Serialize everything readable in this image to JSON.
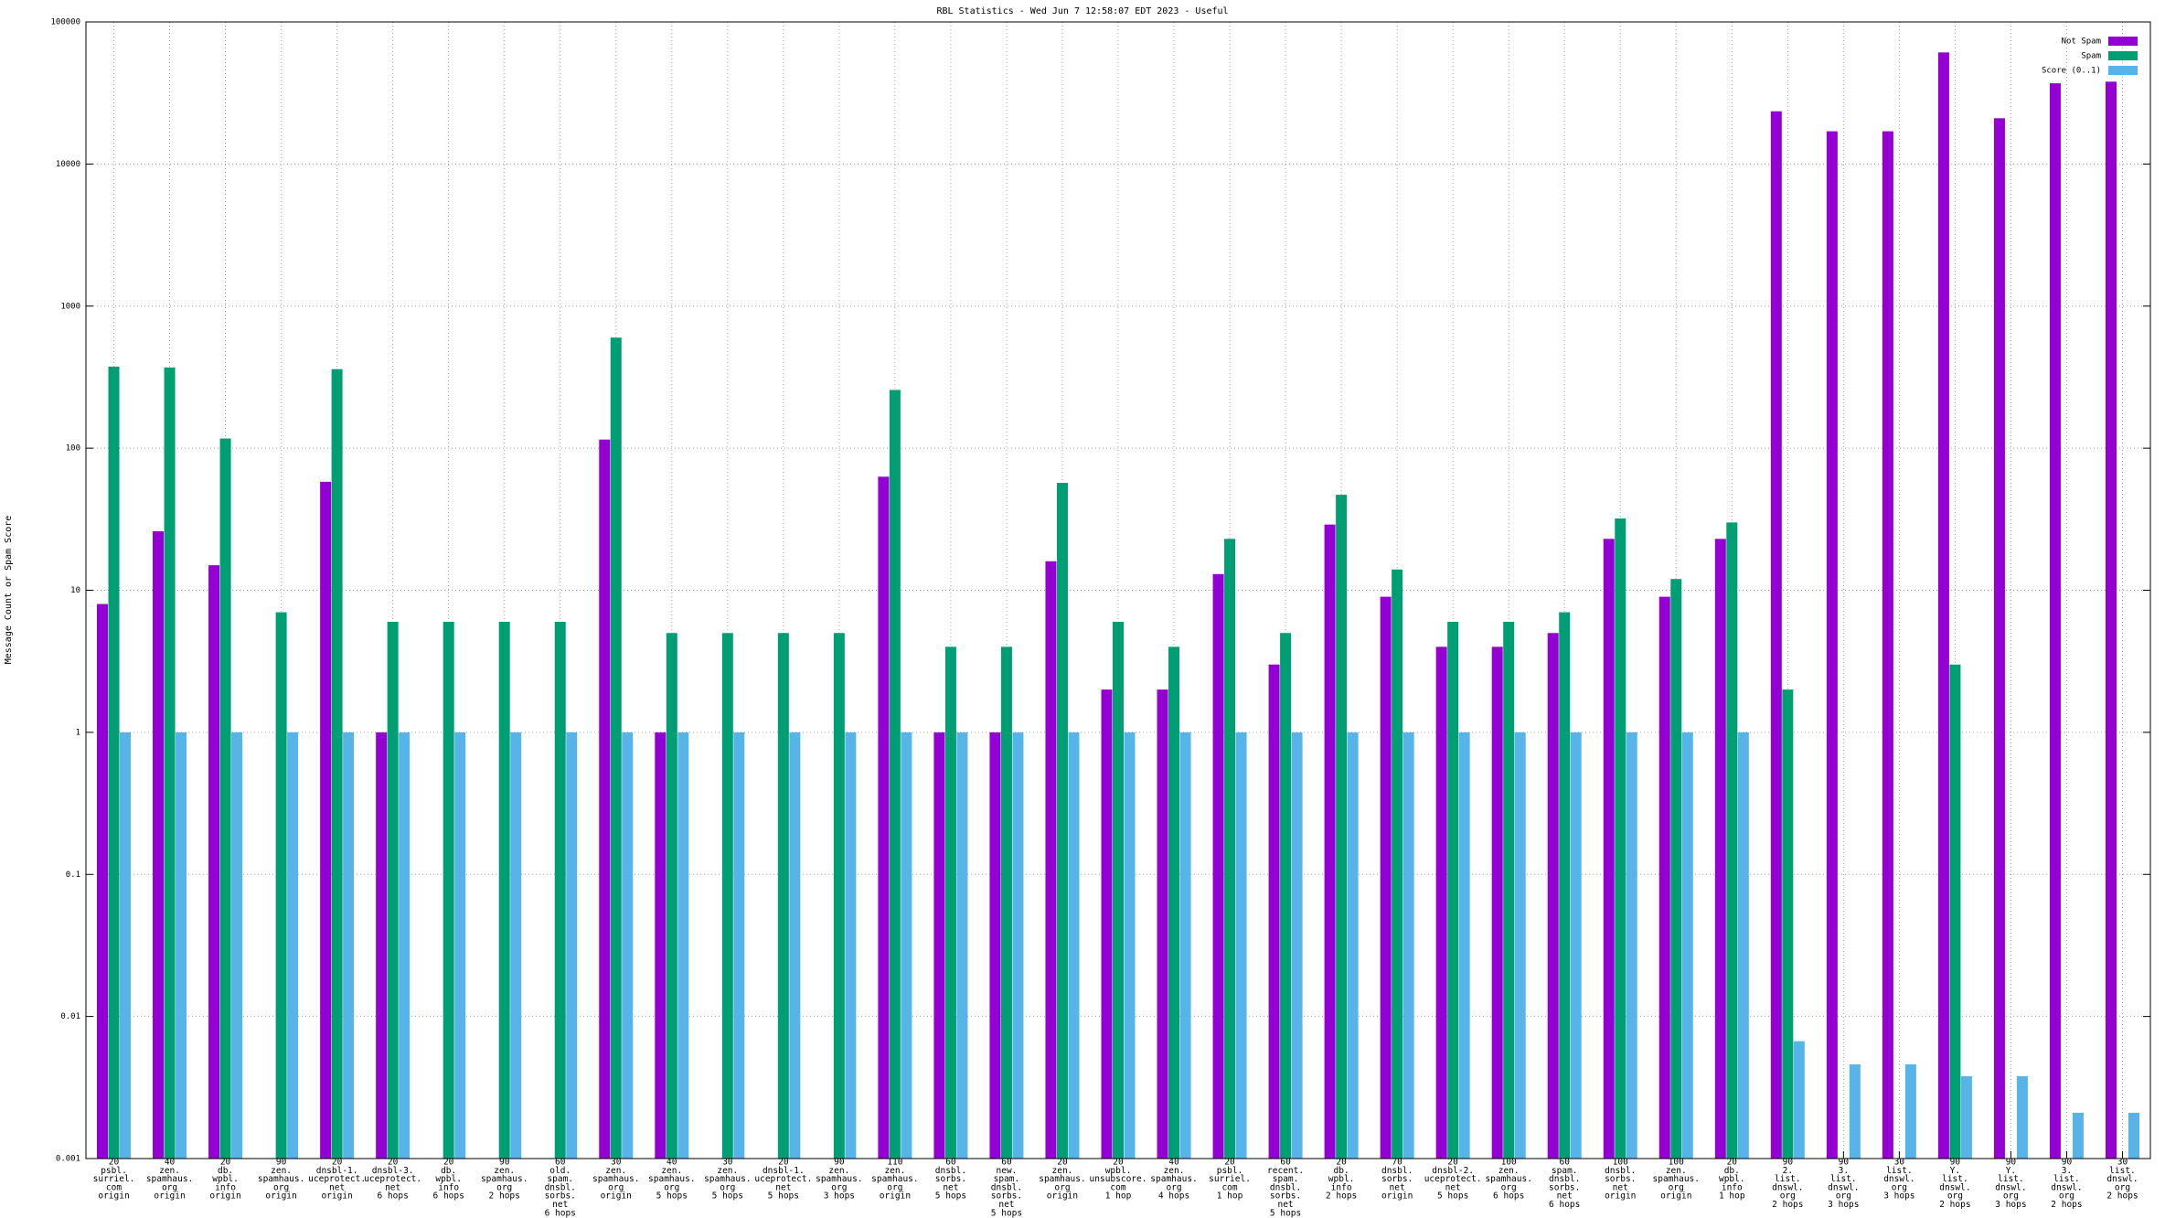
{
  "chart_data": {
    "type": "bar",
    "title": "RBL Statistics - Wed Jun  7 12:58:07 EDT 2023 - Useful",
    "y_label": "Message Count or Spam Score",
    "log_scale": true,
    "grid": true,
    "legend_position": "top-right",
    "ylim": [
      0.001,
      100000
    ],
    "yticks": [
      0.001,
      0.01,
      0.1,
      1,
      10,
      100,
      1000,
      10000,
      100000
    ],
    "categories": [
      [
        "20",
        "psbl.",
        "surriel.",
        "com",
        "origin"
      ],
      [
        "40",
        "zen.",
        "spamhaus.",
        "org",
        "origin"
      ],
      [
        "20",
        "db.",
        "wpbl.",
        "info",
        "origin"
      ],
      [
        "90",
        "zen.",
        "spamhaus.",
        "org",
        "origin"
      ],
      [
        "20",
        "dnsbl-1.",
        "uceprotect.",
        "net",
        "origin"
      ],
      [
        "20",
        "dnsbl-3.",
        "uceprotect.",
        "net",
        "6 hops"
      ],
      [
        "20",
        "db.",
        "wpbl.",
        "info",
        "6 hops"
      ],
      [
        "90",
        "zen.",
        "spamhaus.",
        "org",
        "2 hops"
      ],
      [
        "60",
        "old.",
        "spam.",
        "dnsbl.",
        "sorbs.",
        "net",
        "6 hops"
      ],
      [
        "30",
        "zen.",
        "spamhaus.",
        "org",
        "origin"
      ],
      [
        "40",
        "zen.",
        "spamhaus.",
        "org",
        "5 hops"
      ],
      [
        "30",
        "zen.",
        "spamhaus.",
        "org",
        "5 hops"
      ],
      [
        "20",
        "dnsbl-1.",
        "uceprotect.",
        "net",
        "5 hops"
      ],
      [
        "90",
        "zen.",
        "spamhaus.",
        "org",
        "3 hops"
      ],
      [
        "110",
        "zen.",
        "spamhaus.",
        "org",
        "origin"
      ],
      [
        "60",
        "dnsbl.",
        "sorbs.",
        "net",
        "5 hops"
      ],
      [
        "60",
        "new.",
        "spam.",
        "dnsbl.",
        "sorbs.",
        "net",
        "5 hops"
      ],
      [
        "20",
        "zen.",
        "spamhaus.",
        "org",
        "origin"
      ],
      [
        "20",
        "wpbl.",
        "unsubscore.",
        "com",
        "1 hop"
      ],
      [
        "40",
        "zen.",
        "spamhaus.",
        "org",
        "4 hops"
      ],
      [
        "20",
        "psbl.",
        "surriel.",
        "com",
        "1 hop"
      ],
      [
        "60",
        "recent.",
        "spam.",
        "dnsbl.",
        "sorbs.",
        "net",
        "5 hops"
      ],
      [
        "20",
        "db.",
        "wpbl.",
        "info",
        "2 hops"
      ],
      [
        "70",
        "dnsbl.",
        "sorbs.",
        "net",
        "origin"
      ],
      [
        "20",
        "dnsbl-2.",
        "uceprotect.",
        "net",
        "5 hops"
      ],
      [
        "100",
        "zen.",
        "spamhaus.",
        "org",
        "6 hops"
      ],
      [
        "60",
        "spam.",
        "dnsbl.",
        "sorbs.",
        "net",
        "6 hops"
      ],
      [
        "100",
        "dnsbl.",
        "sorbs.",
        "net",
        "origin"
      ],
      [
        "100",
        "zen.",
        "spamhaus.",
        "org",
        "origin"
      ],
      [
        "20",
        "db.",
        "wpbl.",
        "info",
        "1 hop"
      ],
      [
        "90",
        "2.",
        "list.",
        "dnswl.",
        "org",
        "2 hops"
      ],
      [
        "90",
        "3.",
        "list.",
        "dnswl.",
        "org",
        "3 hops"
      ],
      [
        "30",
        "list.",
        "dnswl.",
        "org",
        "3 hops"
      ],
      [
        "90",
        "Y.",
        "list.",
        "dnswl.",
        "org",
        "2 hops"
      ],
      [
        "90",
        "Y.",
        "list.",
        "dnswl.",
        "org",
        "3 hops"
      ],
      [
        "90",
        "3.",
        "list.",
        "dnswl.",
        "org",
        "2 hops"
      ],
      [
        "30",
        "list.",
        "dnswl.",
        "org",
        "2 hops"
      ]
    ],
    "series": [
      {
        "name": "Not Spam",
        "color": "#9400d3",
        "values": [
          8,
          26,
          15,
          null,
          58,
          1,
          null,
          null,
          null,
          115,
          1,
          null,
          null,
          null,
          63,
          1,
          1,
          16,
          2,
          2,
          13,
          3,
          29,
          9,
          4,
          4,
          5,
          23,
          9,
          23,
          23500,
          17000,
          17000,
          61000,
          21000,
          37000,
          38000
        ]
      },
      {
        "name": "Spam",
        "color": "#009e73",
        "values": [
          375,
          370,
          117,
          7,
          360,
          6,
          6,
          6,
          6,
          600,
          5,
          5,
          5,
          5,
          257,
          4,
          4,
          57,
          6,
          4,
          23,
          5,
          47,
          14,
          6,
          6,
          7,
          32,
          12,
          30,
          2,
          null,
          null,
          3,
          null,
          null,
          null
        ]
      },
      {
        "name": "Score (0..1)",
        "color": "#56b4e9",
        "values": [
          1,
          1,
          1,
          1,
          1,
          1,
          1,
          1,
          1,
          1,
          1,
          1,
          1,
          1,
          1,
          1,
          1,
          1,
          1,
          1,
          1,
          1,
          1,
          1,
          1,
          1,
          1,
          1,
          1,
          1,
          0.0067,
          0.0046,
          0.0046,
          0.0038,
          0.0038,
          0.0021,
          0.0021
        ]
      }
    ]
  }
}
